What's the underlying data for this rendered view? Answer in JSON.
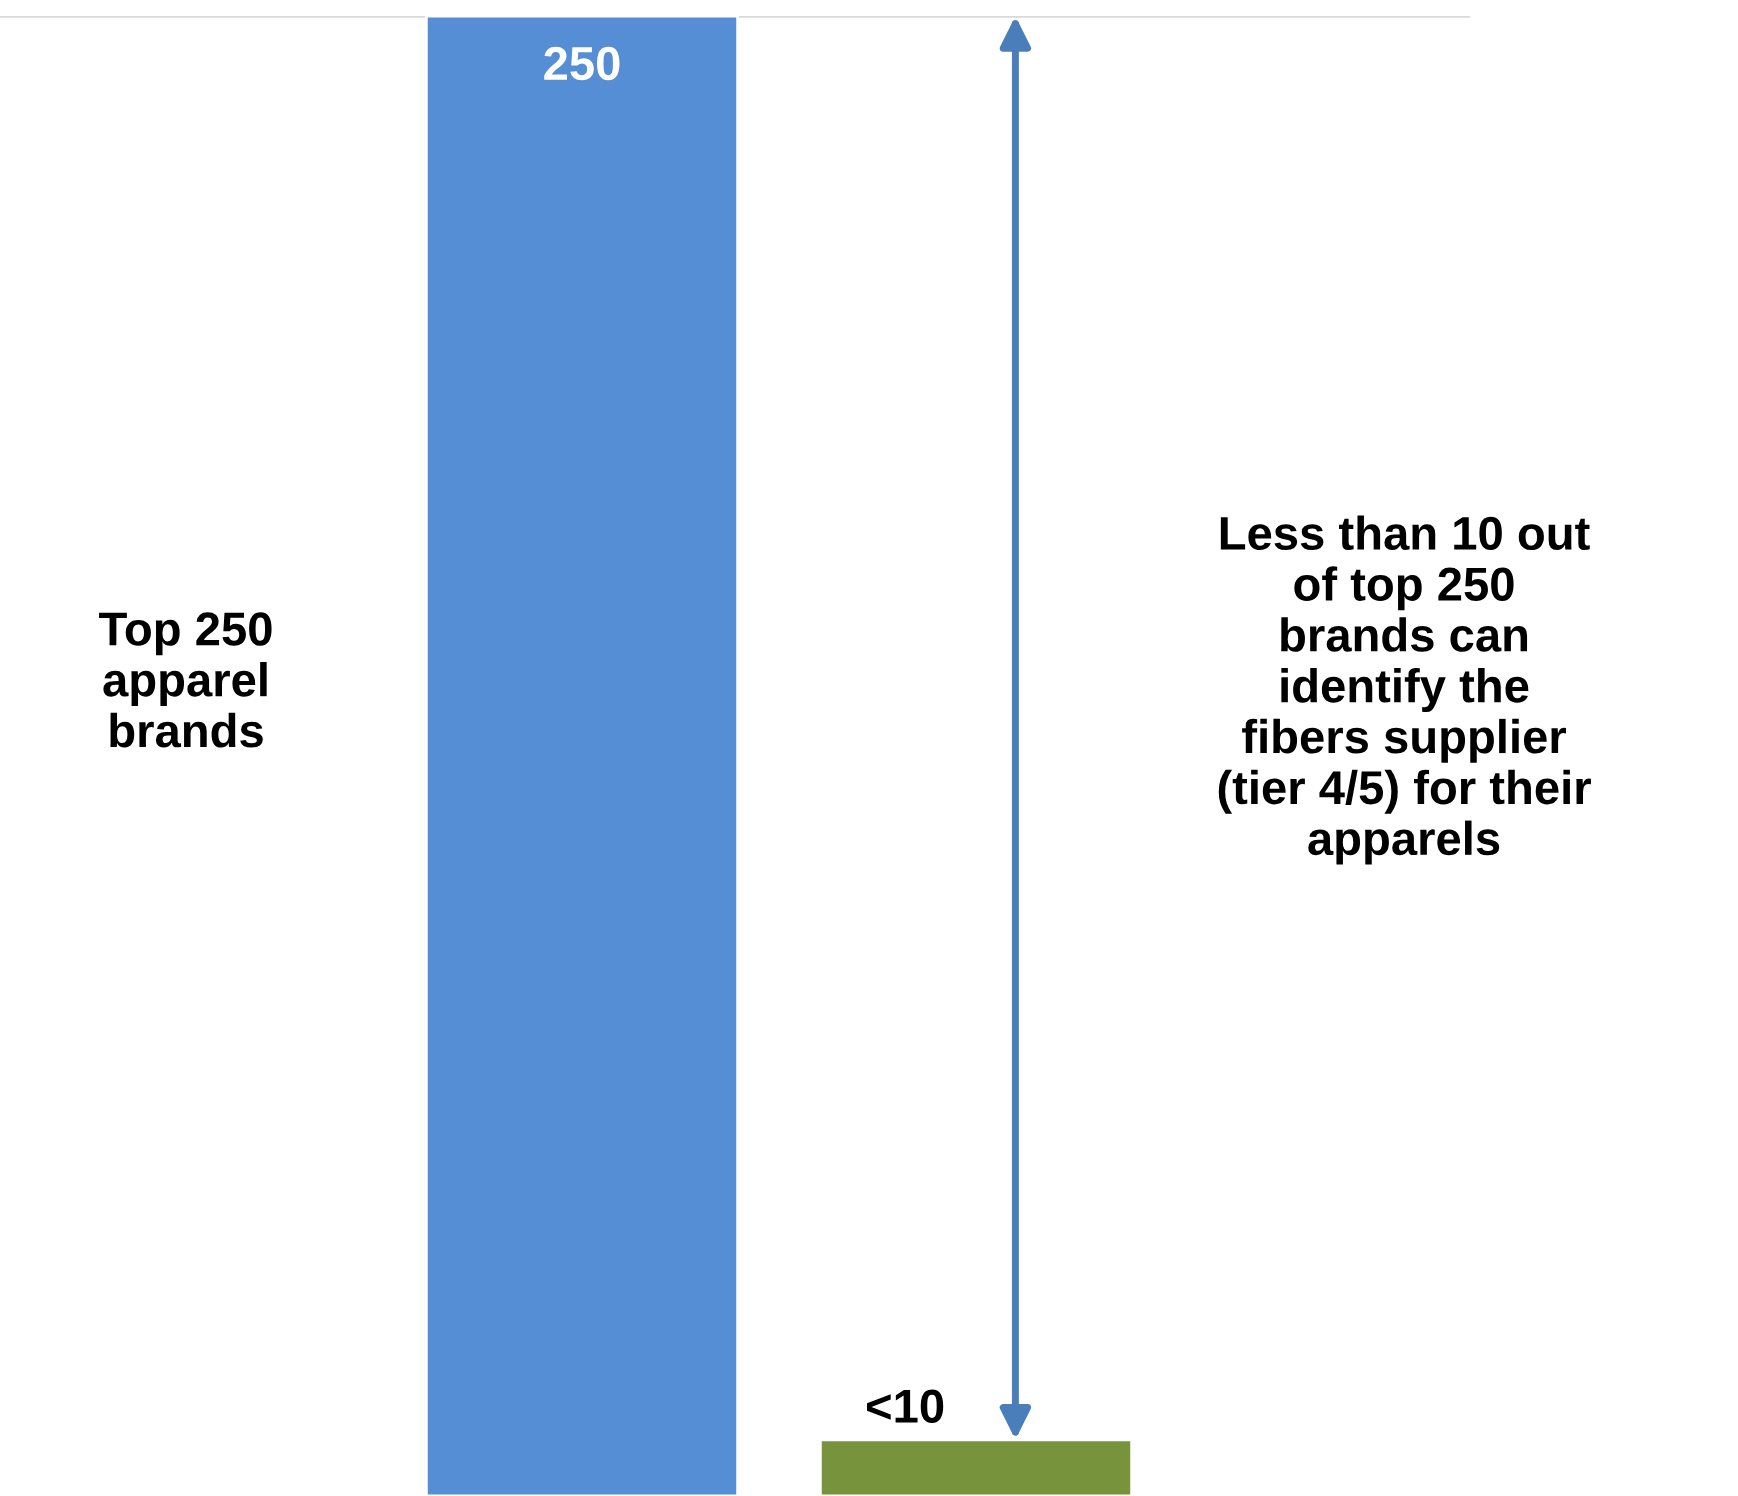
{
  "chart_data": {
    "type": "bar",
    "categories": [
      null,
      null
    ],
    "values": [
      250,
      9.5
    ],
    "colors": [
      "#558ed5",
      "#77933c"
    ],
    "value_labels": [
      "250",
      "<10"
    ],
    "ylim": [
      0,
      250
    ],
    "grid": false,
    "ref_lines": [
      {
        "axis": "y",
        "value": 250,
        "color": "#d9d9d9"
      }
    ],
    "annotations": [
      "Top 250\napparel\nbrands",
      "Less than 10 out\nof top 250\nbrands can\nidentify the\nfibers supplier\n(tier 4/5) for their\napparels"
    ]
  }
}
